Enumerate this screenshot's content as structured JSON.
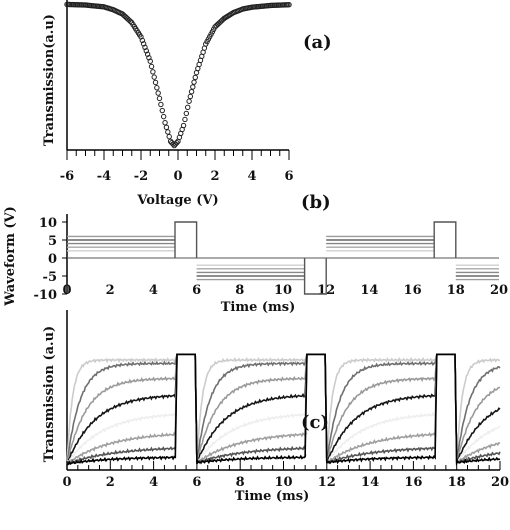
{
  "chart_data": [
    {
      "panel_label": "(a)",
      "type": "scatter",
      "xlabel": "Voltage (V)",
      "ylabel": "Transmission(a.u)",
      "xlim": [
        -6,
        6
      ],
      "x_ticks": [
        -6,
        -4,
        -2,
        0,
        2,
        4,
        6
      ],
      "ylim": [
        0,
        1
      ],
      "y_ticks_labeled": false,
      "marker": "open-circle",
      "color": "#222222",
      "x": [
        -6.0,
        -5.0,
        -4.0,
        -3.5,
        -3.0,
        -2.5,
        -2.0,
        -1.5,
        -1.0,
        -0.7,
        -0.4,
        -0.2,
        0.0,
        0.3,
        0.6,
        1.0,
        1.5,
        2.0,
        2.5,
        3.0,
        3.5,
        4.0,
        5.0,
        6.0
      ],
      "y": [
        0.997,
        0.993,
        0.98,
        0.96,
        0.93,
        0.87,
        0.77,
        0.6,
        0.34,
        0.17,
        0.04,
        0.01,
        0.04,
        0.15,
        0.32,
        0.52,
        0.72,
        0.84,
        0.9,
        0.94,
        0.965,
        0.978,
        0.99,
        0.995
      ]
    },
    {
      "panel_label": "(b)",
      "type": "line",
      "xlabel": "Time (ms)",
      "ylabel": "Waveform (V)",
      "xlim": [
        0,
        20
      ],
      "x_ticks": [
        0,
        2,
        4,
        6,
        8,
        10,
        12,
        14,
        16,
        18,
        20
      ],
      "ylim": [
        -10,
        10
      ],
      "y_ticks": [
        -10,
        -5,
        0,
        5,
        10
      ],
      "pulse_amplitude": 10,
      "pulse_windows": [
        [
          5,
          6
        ],
        [
          11,
          12
        ],
        [
          17,
          18
        ]
      ],
      "series": [
        {
          "level": 2,
          "color": "#cfcfcf"
        },
        {
          "level": 3,
          "color": "#a8a8a8"
        },
        {
          "level": 4,
          "color": "#888888"
        },
        {
          "level": 5,
          "color": "#666666"
        },
        {
          "level": 6,
          "color": "#9a9a9a"
        }
      ]
    },
    {
      "panel_label": "(c)",
      "type": "line",
      "xlabel": "Time (ms)",
      "ylabel": "Transmission (a.u)",
      "xlim": [
        0,
        20
      ],
      "x_ticks": [
        0,
        2,
        4,
        6,
        8,
        10,
        12,
        14,
        16,
        18,
        20
      ],
      "ylim": [
        0,
        1
      ],
      "y_ticks_labeled": false,
      "pulse_windows": [
        [
          5,
          6
        ],
        [
          11,
          12
        ],
        [
          17,
          18
        ]
      ],
      "pulse_level": 0.98,
      "series": [
        {
          "plateau": 0.93,
          "tau": 0.25,
          "color": "#cccccc"
        },
        {
          "plateau": 0.9,
          "tau": 0.6,
          "color": "#707070"
        },
        {
          "plateau": 0.77,
          "tau": 0.9,
          "color": "#9a9a9a"
        },
        {
          "plateau": 0.63,
          "tau": 1.3,
          "color": "#151515"
        },
        {
          "plateau": 0.47,
          "tau": 1.6,
          "color": "#eeeeee"
        },
        {
          "plateau": 0.3,
          "tau": 2.0,
          "color": "#9f9f9f"
        },
        {
          "plateau": 0.17,
          "tau": 2.2,
          "color": "#555555"
        },
        {
          "plateau": 0.08,
          "tau": 2.0,
          "color": "#000000"
        }
      ]
    }
  ]
}
